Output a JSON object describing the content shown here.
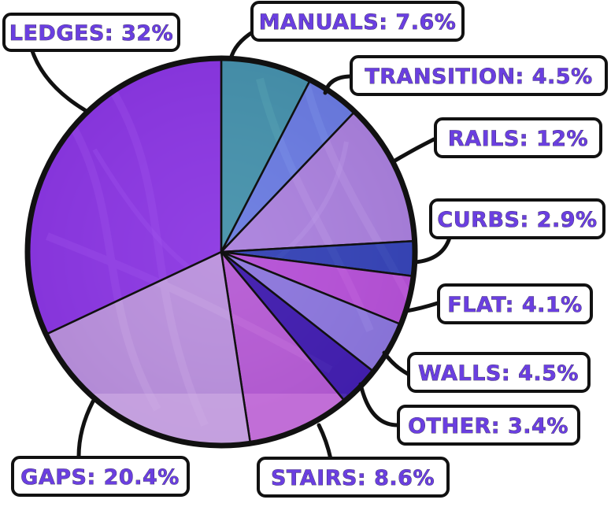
{
  "chart_data": {
    "type": "pie",
    "start_angle_deg": -90,
    "direction": "clockwise",
    "slices": [
      {
        "label": "MANUALS",
        "value": 7.6,
        "display": "MANUALS: 7.6%",
        "color": "#2fa3a0",
        "opacity": 0.72
      },
      {
        "label": "TRANSITION",
        "value": 4.5,
        "display": "TRANSITION: 4.5%",
        "color": "#5f86e6",
        "opacity": 0.72
      },
      {
        "label": "RAILS",
        "value": 12,
        "display": "RAILS: 12%",
        "color": "#b48de0",
        "opacity": 0.72
      },
      {
        "label": "CURBS",
        "value": 2.9,
        "display": "CURBS: 2.9%",
        "color": "#2440b0",
        "opacity": 0.8
      },
      {
        "label": "FLAT",
        "value": 4.1,
        "display": "FLAT: 4.1%",
        "color": "#c24fd8",
        "opacity": 0.75
      },
      {
        "label": "WALLS",
        "value": 4.5,
        "display": "WALLS: 4.5%",
        "color": "#8c7fe0",
        "opacity": 0.75
      },
      {
        "label": "OTHER",
        "value": 3.4,
        "display": "OTHER: 3.4%",
        "color": "#3414a8",
        "opacity": 0.82
      },
      {
        "label": "STAIRS",
        "value": 8.6,
        "display": "STAIRS: 8.6%",
        "color": "#c55bd6",
        "opacity": 0.7
      },
      {
        "label": "GAPS",
        "value": 20.4,
        "display": "GAPS: 20.4%",
        "color": "#c9a2e0",
        "opacity": 0.72
      },
      {
        "label": "LEDGES",
        "value": 32,
        "display": "LEDGES: 32%",
        "color": "#8a2be8",
        "opacity": 0.72
      }
    ]
  }
}
